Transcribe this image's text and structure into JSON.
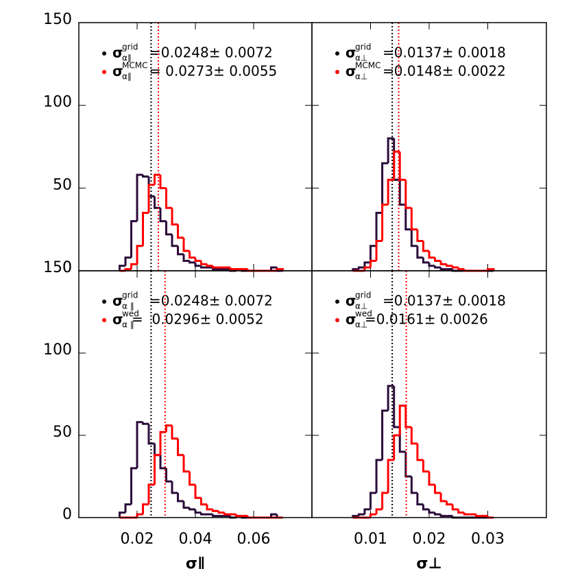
{
  "chart_data": [
    {
      "type": "histogram",
      "xlim": [
        0,
        0.08
      ],
      "ylim": [
        0,
        150
      ],
      "xticks": [
        0.02,
        0.04,
        0.06
      ],
      "yticks": [
        0,
        50,
        100,
        150
      ],
      "bins": [
        0.014,
        0.016,
        0.018,
        0.02,
        0.022,
        0.024,
        0.026,
        0.028,
        0.03,
        0.032,
        0.034,
        0.036,
        0.038,
        0.04,
        0.042,
        0.044,
        0.046,
        0.048,
        0.05,
        0.052,
        0.054,
        0.056,
        0.058,
        0.06,
        0.062,
        0.064,
        0.066,
        0.068,
        0.07
      ],
      "series": [
        {
          "symbol": "σ",
          "name": "grid",
          "subscript": "α∥",
          "stat_label": "=0.0248± 0.0072",
          "mean": 0.0248,
          "color": "#2a0a3a",
          "legend_color": "#000000",
          "values": [
            3,
            8,
            30,
            58,
            57,
            45,
            38,
            30,
            22,
            15,
            10,
            6,
            5,
            3,
            2,
            2,
            1,
            1,
            1,
            0,
            1,
            0,
            0,
            0,
            0,
            0,
            2,
            0
          ]
        },
        {
          "symbol": "σ",
          "name": "MCMC",
          "subscript": "α∥",
          "stat_label": "= 0.0273± 0.0055",
          "mean": 0.0273,
          "color": "#ff0000",
          "legend_color": "#ff0000",
          "values": [
            0,
            1,
            4,
            15,
            35,
            52,
            58,
            50,
            38,
            28,
            20,
            12,
            8,
            6,
            4,
            3,
            2,
            2,
            2,
            1,
            1,
            1,
            0,
            0,
            0,
            0,
            0,
            1
          ]
        }
      ]
    },
    {
      "type": "histogram",
      "xlim": [
        0,
        0.04
      ],
      "ylim": [
        0,
        150
      ],
      "xticks": [
        0.01,
        0.02,
        0.03
      ],
      "yticks": [
        0,
        50,
        100,
        150
      ],
      "bins": [
        0.007,
        0.008,
        0.009,
        0.01,
        0.011,
        0.012,
        0.013,
        0.014,
        0.015,
        0.016,
        0.017,
        0.018,
        0.019,
        0.02,
        0.021,
        0.022,
        0.023,
        0.024,
        0.025,
        0.026,
        0.027,
        0.028,
        0.029,
        0.03,
        0.031
      ],
      "series": [
        {
          "symbol": "σ",
          "name": "grid",
          "subscript": "α⊥",
          "stat_label": "=0.0137± 0.0018",
          "mean": 0.0137,
          "color": "#2a0a3a",
          "legend_color": "#000000",
          "values": [
            1,
            2,
            5,
            15,
            35,
            65,
            80,
            55,
            40,
            25,
            15,
            8,
            5,
            3,
            2,
            1,
            1,
            0,
            0,
            0,
            0,
            0,
            0,
            0
          ]
        },
        {
          "symbol": "σ",
          "name": "MCMC",
          "subscript": "α⊥",
          "stat_label": "=0.0148± 0.0022",
          "mean": 0.0148,
          "color": "#ff0000",
          "legend_color": "#ff0000",
          "values": [
            0,
            0,
            2,
            6,
            18,
            40,
            55,
            72,
            55,
            38,
            25,
            18,
            12,
            8,
            6,
            4,
            3,
            2,
            1,
            0,
            0,
            0,
            0,
            1
          ]
        }
      ]
    },
    {
      "type": "histogram",
      "xlim": [
        0,
        0.08
      ],
      "ylim": [
        0,
        150
      ],
      "xticks": [
        0.02,
        0.04,
        0.06
      ],
      "yticks": [
        0,
        50,
        100,
        150
      ],
      "xlabel": "σ∥",
      "bins": [
        0.014,
        0.016,
        0.018,
        0.02,
        0.022,
        0.024,
        0.026,
        0.028,
        0.03,
        0.032,
        0.034,
        0.036,
        0.038,
        0.04,
        0.042,
        0.044,
        0.046,
        0.048,
        0.05,
        0.052,
        0.054,
        0.056,
        0.058,
        0.06,
        0.062,
        0.064,
        0.066,
        0.068,
        0.07
      ],
      "series": [
        {
          "symbol": "σ",
          "name": "grid",
          "subscript": "α ∥",
          "stat_label": "=0.0248± 0.0072",
          "mean": 0.0248,
          "color": "#2a0a3a",
          "legend_color": "#000000",
          "values": [
            3,
            8,
            30,
            58,
            57,
            45,
            38,
            30,
            22,
            15,
            10,
            6,
            5,
            3,
            2,
            2,
            1,
            1,
            1,
            0,
            1,
            0,
            0,
            0,
            0,
            0,
            2,
            0
          ]
        },
        {
          "symbol": "σ",
          "name": "wed",
          "subscript": "α ∥",
          "stat_label": "=  0.0296± 0.0052",
          "mean": 0.0296,
          "color": "#ff0000",
          "legend_color": "#ff0000",
          "values": [
            0,
            0,
            0,
            2,
            8,
            20,
            38,
            52,
            56,
            48,
            38,
            28,
            20,
            12,
            8,
            5,
            4,
            3,
            2,
            2,
            1,
            1,
            0,
            0,
            0,
            0,
            0,
            0
          ]
        }
      ]
    },
    {
      "type": "histogram",
      "xlim": [
        0,
        0.04
      ],
      "ylim": [
        0,
        150
      ],
      "xticks": [
        0.01,
        0.02,
        0.03
      ],
      "yticks": [
        0,
        50,
        100,
        150
      ],
      "xlabel": "σ⊥",
      "bins": [
        0.007,
        0.008,
        0.009,
        0.01,
        0.011,
        0.012,
        0.013,
        0.014,
        0.015,
        0.016,
        0.017,
        0.018,
        0.019,
        0.02,
        0.021,
        0.022,
        0.023,
        0.024,
        0.025,
        0.026,
        0.027,
        0.028,
        0.029,
        0.03,
        0.031
      ],
      "series": [
        {
          "symbol": "σ",
          "name": "grid",
          "subscript": "α⊥",
          "stat_label": "=0.0137± 0.0018",
          "mean": 0.0137,
          "color": "#2a0a3a",
          "legend_color": "#000000",
          "values": [
            1,
            2,
            5,
            15,
            35,
            65,
            80,
            55,
            40,
            25,
            15,
            8,
            5,
            3,
            2,
            1,
            1,
            0,
            0,
            0,
            0,
            0,
            0,
            0
          ]
        },
        {
          "symbol": "σ",
          "name": "wed",
          "subscript": "α⊥",
          "stat_label": "=0.0161± 0.0026",
          "mean": 0.0161,
          "color": "#ff0000",
          "legend_color": "#ff0000",
          "values": [
            0,
            0,
            0,
            2,
            5,
            15,
            35,
            50,
            68,
            55,
            45,
            35,
            28,
            20,
            15,
            10,
            8,
            5,
            3,
            2,
            2,
            1,
            1,
            0
          ]
        }
      ]
    }
  ]
}
